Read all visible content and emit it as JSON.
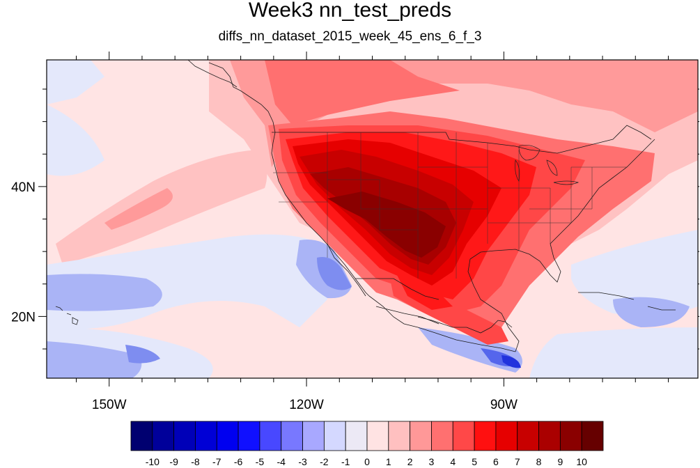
{
  "title": "Week3 nn_test_preds",
  "subtitle": "diffs_nn_dataset_2015_week_45_ens_6_f_3",
  "map": {
    "lon_range": [
      -159.5,
      -60.5
    ],
    "lat_range": [
      10.5,
      59.5
    ],
    "lon_ticks": [
      {
        "label": "150W",
        "lon": -150
      },
      {
        "label": "120W",
        "lon": -120
      },
      {
        "label": "90W",
        "lon": -90
      }
    ],
    "lat_ticks": [
      {
        "label": "40N",
        "lat": 40
      },
      {
        "label": "20N",
        "lat": 20
      }
    ],
    "minor_lon": [
      -155,
      -145,
      -140,
      -135,
      -130,
      -125,
      -115,
      -110,
      -105,
      -100,
      -95,
      -85,
      -80,
      -75,
      -70,
      -65
    ],
    "minor_lat": [
      15,
      25,
      30,
      35,
      45,
      50,
      55
    ]
  },
  "colorbar": {
    "labels": [
      "-10",
      "-9",
      "-8",
      "-7",
      "-6",
      "-5",
      "-4",
      "-3",
      "-2",
      "-1",
      "0",
      "1",
      "2",
      "3",
      "4",
      "5",
      "6",
      "7",
      "8",
      "9",
      "10"
    ],
    "colors": [
      "#000070",
      "#00009a",
      "#0000b8",
      "#0000d6",
      "#0000f0",
      "#1010ff",
      "#4848ff",
      "#7878ff",
      "#a8a8ff",
      "#d4d8ff",
      "#ece9f5",
      "#ffe3e3",
      "#ffc0c0",
      "#ff9898",
      "#ff7070",
      "#ff4848",
      "#ff1010",
      "#e60000",
      "#c80000",
      "#aa0000",
      "#8a0000",
      "#660000"
    ]
  },
  "field_colors": {
    "bg": "#ffe4e4",
    "pale_blue": "#e4e8fb",
    "light_blue": "#aab4f6",
    "mid_blue": "#7e8df0",
    "blue": "#5566ec",
    "deep_blue": "#2233dd",
    "light_red": "#ffc2c2",
    "red2": "#ff9a9a",
    "red3": "#ff7070",
    "red4": "#ff4747",
    "red5": "#ff1818",
    "red6": "#e60000",
    "red7": "#c80000",
    "red8": "#a80000",
    "red9": "#8a0000"
  }
}
